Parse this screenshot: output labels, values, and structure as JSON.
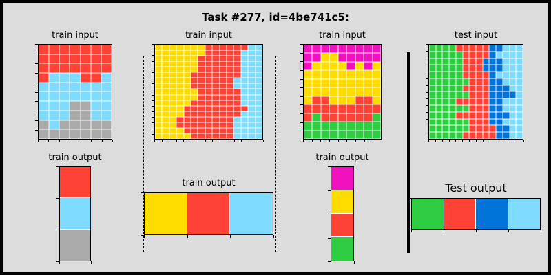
{
  "title": "Task #277, id=4be741c5:",
  "colors": {
    "R": "#ff4136",
    "B": "#7fdbff",
    "G": "#aaaaaa",
    "Y": "#ffdc00",
    "M": "#f012be",
    "N": "#2ecc40",
    "D": "#0074d9"
  },
  "pairs": [
    {
      "input_label": "train input",
      "output_label": "train output",
      "input": [
        "RRRRRRR",
        "RRRRRRR",
        "RRRRRRR",
        "RBBBRRB",
        "BBBBBBB",
        "BBBBBBB",
        "BBBGGBB",
        "BBBGGBB",
        "GBGGGGG",
        "GGGGGGG"
      ],
      "output": [
        "R",
        "B",
        "G"
      ]
    },
    {
      "input_label": "train input",
      "output_label": "train output",
      "input": [
        "YYYYYYYRRRRRRBB",
        "YYYYYYYRRRRRBBB",
        "YYYYYYRRRRRRBBB",
        "YYYYYYRRRRRRBBB",
        "YYYYYYRRRRRRBBB",
        "YYYYYRRRRRRRBBB",
        "YYYYYRRRRRRBBBB",
        "YYYYYRRRRRRBBBB",
        "YYYYYYRRRRRRBBB",
        "YYYYYYRRRRRRBBB",
        "YYYYYRRRRRRRBBB",
        "YYYYRRRRRRRRRBB",
        "YYYYRRRRRRRRBBB",
        "YYYRRRRRRRRBBBB",
        "YYYRRRRRRRRBBBB",
        "YYYYRRRRRRRBBBB",
        "YYYYYRRRRRRBBBB"
      ],
      "output": [
        "Y",
        "R",
        "B"
      ]
    },
    {
      "input_label": "train input",
      "output_label": "train output",
      "input": [
        "MMMMMMMMM",
        "MMYYMMMMM",
        "MYYYYMYMY",
        "YYYYYYYYY",
        "YYYYYYYYY",
        "YYYYYYYYY",
        "YRRYYYRRY",
        "RRRRRRRRR",
        "RNRRRRRRN",
        "NNNNNNNNN",
        "NNNNNNNNN"
      ],
      "output": [
        "M",
        "Y",
        "R",
        "N"
      ]
    }
  ],
  "test": {
    "input_label": "test input",
    "output_label": "Test output",
    "input": [
      "NNNNRRRRRDDBBB",
      "NNNNNRRRRDBBBB",
      "NNNNNRRRDDDBBB",
      "NNNNNRRRDDDBBB",
      "NNNNNRRRRDBBBB",
      "NNNNNNRRRDDBBB",
      "NNNNNRRRRDDDBB",
      "NNNNNNRRRDDDDB",
      "NNNNRRRRRDDBBB",
      "NNNNNNRRRDDBBB",
      "NNNNRRRRRDDDBB",
      "NNNNNNRRRDDBBB",
      "NNNNNNRRRRDDBB",
      "NNNNNRRRRRDDBB"
    ],
    "output": [
      "N",
      "R",
      "D",
      "B"
    ]
  }
}
